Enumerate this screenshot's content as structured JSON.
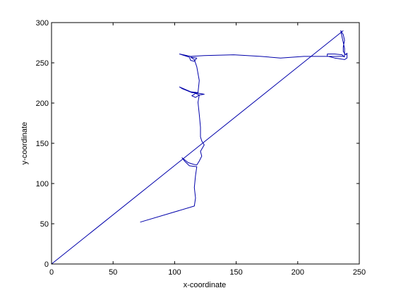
{
  "chart_data": {
    "type": "line",
    "title": "",
    "xlabel": "x-coordinate",
    "ylabel": "y-coordinate",
    "xlim": [
      0,
      250
    ],
    "ylim": [
      0,
      300
    ],
    "xticks": [
      0,
      50,
      100,
      150,
      200,
      250
    ],
    "yticks": [
      0,
      50,
      100,
      150,
      200,
      250,
      300
    ],
    "grid": false,
    "legend": "none",
    "line_color": "#0000aa",
    "series": [
      {
        "points": [
          [
            0,
            0
          ],
          [
            237,
            290
          ]
        ]
      },
      {
        "points": [
          [
            72,
            52
          ],
          [
            116,
            72
          ],
          [
            117,
            82
          ],
          [
            116,
            95
          ],
          [
            117,
            110
          ],
          [
            118,
            121
          ],
          [
            112,
            122
          ],
          [
            108,
            128
          ],
          [
            106,
            132
          ],
          [
            111,
            126
          ],
          [
            115,
            124
          ],
          [
            118,
            123
          ],
          [
            120,
            128
          ],
          [
            122,
            134
          ],
          [
            121,
            140
          ],
          [
            124,
            148
          ],
          [
            122,
            153
          ],
          [
            121,
            158
          ],
          [
            121,
            170
          ],
          [
            120,
            186
          ],
          [
            119,
            201
          ],
          [
            120,
            210
          ],
          [
            117,
            212
          ],
          [
            114,
            209
          ],
          [
            117,
            207
          ],
          [
            120,
            210
          ],
          [
            124,
            211
          ],
          [
            120,
            212
          ],
          [
            114,
            213
          ],
          [
            106,
            218
          ],
          [
            104,
            220
          ],
          [
            113,
            214
          ],
          [
            119,
            213
          ],
          [
            120,
            228
          ],
          [
            118,
            245
          ],
          [
            116,
            254
          ],
          [
            113,
            257
          ],
          [
            118,
            256
          ],
          [
            116,
            252
          ],
          [
            113,
            253
          ],
          [
            112,
            257
          ],
          [
            106,
            260
          ],
          [
            104,
            261
          ],
          [
            113,
            258
          ],
          [
            124,
            259
          ],
          [
            148,
            260
          ],
          [
            170,
            258
          ],
          [
            186,
            256
          ],
          [
            205,
            258
          ],
          [
            225,
            258
          ],
          [
            230,
            256
          ],
          [
            234,
            255
          ],
          [
            238,
            254
          ],
          [
            240,
            256
          ],
          [
            240,
            258
          ],
          [
            240,
            262
          ],
          [
            239,
            260
          ],
          [
            237,
            264
          ],
          [
            237,
            270
          ],
          [
            238,
            278
          ],
          [
            237,
            285
          ],
          [
            235,
            290
          ],
          [
            236,
            282
          ],
          [
            238,
            268
          ],
          [
            238,
            258
          ],
          [
            232,
            258
          ],
          [
            224,
            258
          ],
          [
            224,
            261
          ],
          [
            230,
            261
          ],
          [
            236,
            260
          ],
          [
            238,
            257
          ]
        ]
      }
    ]
  }
}
